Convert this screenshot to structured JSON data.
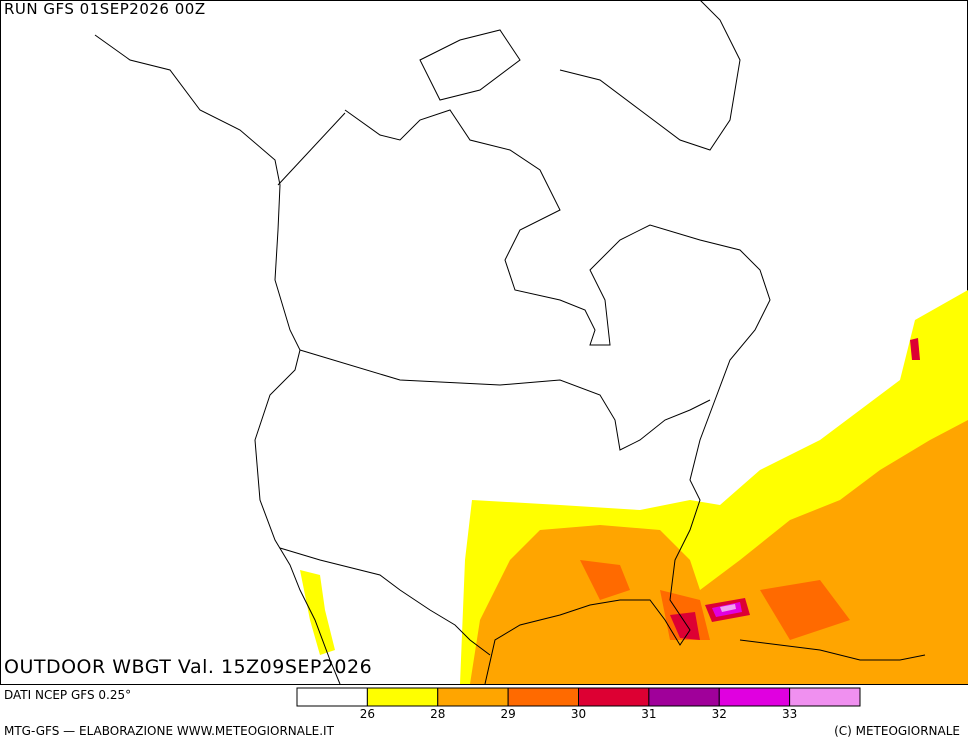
{
  "header": {
    "run": "RUN GFS 01SEP2026 00Z",
    "title": "OUTDOOR WBGT Val. 15Z09SEP2026"
  },
  "legend": {
    "source": "DATI NCEP GFS 0.25°",
    "colors": [
      "#ffffff",
      "#ffff00",
      "#ffa500",
      "#ff6a00",
      "#dd0033",
      "#a0009a",
      "#e000e0",
      "#f090f0"
    ],
    "ticks": [
      26,
      28,
      29,
      30,
      31,
      32,
      33
    ]
  },
  "footer": {
    "left": "MTG-GFS — ELABORAZIONE WWW.METEOGIORNALE.IT",
    "right": "(C) METEOGIORNALE"
  }
}
